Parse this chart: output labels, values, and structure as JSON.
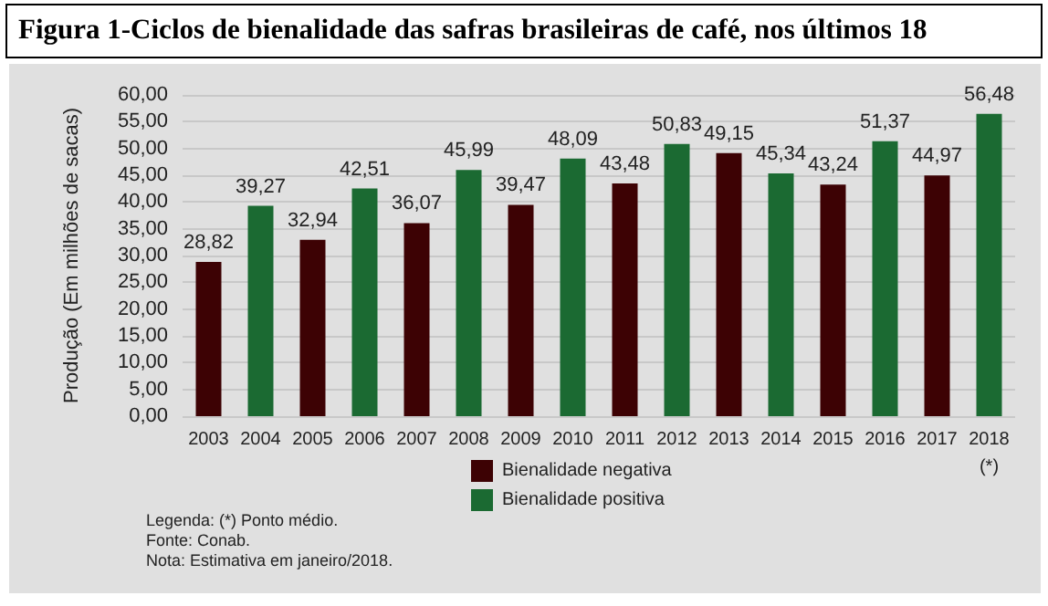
{
  "chart_data": {
    "type": "bar",
    "title": "Figura 1-Ciclos de bienalidade das safras brasileiras de café, nos últimos 18",
    "ylabel": "Produção (Em milhões de sacas)",
    "categories": [
      "2003",
      "2004",
      "2005",
      "2006",
      "2007",
      "2008",
      "2009",
      "2010",
      "2011",
      "2012",
      "2013",
      "2014",
      "2015",
      "2016",
      "2017",
      "2018"
    ],
    "series": [
      {
        "name": "Bienalidade negativa",
        "color": "#3d0204",
        "values": [
          28.82,
          null,
          32.94,
          null,
          36.07,
          null,
          39.47,
          null,
          43.48,
          null,
          49.15,
          null,
          43.24,
          null,
          44.97,
          null
        ],
        "value_labels": [
          "28,82",
          null,
          "32,94",
          null,
          "36,07",
          null,
          "39,47",
          null,
          "43,48",
          null,
          "49,15",
          null,
          "43,24",
          null,
          "44,97",
          null
        ]
      },
      {
        "name": "Bienalidade positiva",
        "color": "#1b6a32",
        "values": [
          null,
          39.27,
          null,
          42.51,
          null,
          45.99,
          null,
          48.09,
          null,
          50.83,
          null,
          45.34,
          null,
          51.37,
          null,
          56.48
        ],
        "value_labels": [
          null,
          "39,27",
          null,
          "42,51",
          null,
          "45,99",
          null,
          "48,09",
          null,
          "50,83",
          null,
          "45,34",
          null,
          "51,37",
          null,
          "56,48"
        ]
      }
    ],
    "stacked": true,
    "ylim": [
      0,
      60
    ],
    "yticks": [
      {
        "value": 0,
        "label": "0,00"
      },
      {
        "value": 5,
        "label": "5,00"
      },
      {
        "value": 10,
        "label": "10,00"
      },
      {
        "value": 15,
        "label": "15,00"
      },
      {
        "value": 20,
        "label": "20,00"
      },
      {
        "value": 25,
        "label": "25,00"
      },
      {
        "value": 30,
        "label": "30,00"
      },
      {
        "value": 35,
        "label": "35,00"
      },
      {
        "value": 40,
        "label": "40,00"
      },
      {
        "value": 45,
        "label": "45,00"
      },
      {
        "value": 50,
        "label": "50,00"
      },
      {
        "value": 55,
        "label": "55,00"
      },
      {
        "value": 60,
        "label": "60,00"
      }
    ],
    "grid": "y",
    "legend": "bottom",
    "annotations": [
      "(*)",
      "Legenda: (*) Ponto médio.",
      "Fonte: Conab.",
      "Nota: Estimativa em janeiro/2018."
    ]
  }
}
